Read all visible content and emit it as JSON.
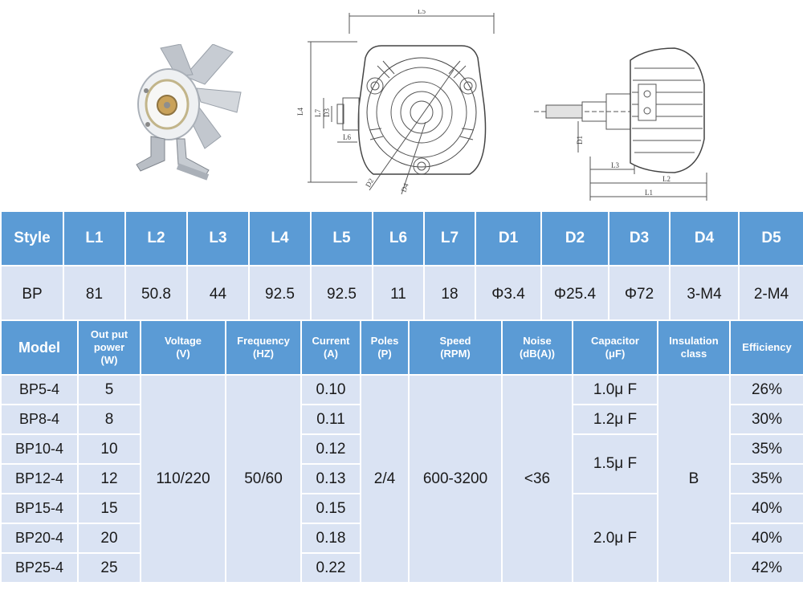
{
  "dimension_table": {
    "headers": [
      "Style",
      "L1",
      "L2",
      "L3",
      "L4",
      "L5",
      "L6",
      "L7",
      "D1",
      "D2",
      "D3",
      "D4",
      "D5"
    ],
    "row": [
      "BP",
      "81",
      "50.8",
      "44",
      "92.5",
      "92.5",
      "11",
      "18",
      "Φ3.4",
      "Φ25.4",
      "Φ72",
      "3-M4",
      "2-M4"
    ]
  },
  "drawing_labels": {
    "front": [
      "L4",
      "L7",
      "D3",
      "L6",
      "L5",
      "D2",
      "D4"
    ],
    "side": [
      "D1",
      "L3",
      "L2",
      "L1"
    ]
  },
  "model_table": {
    "headers": {
      "model": "Model",
      "power": [
        "Out put",
        "power",
        "(W)"
      ],
      "voltage": [
        "Voltage",
        "(V)"
      ],
      "frequency": [
        "Frequency",
        "(HZ)"
      ],
      "current": [
        "Current",
        "(A)"
      ],
      "poles": [
        "Poles",
        "(P)"
      ],
      "speed": [
        "Speed",
        "(RPM)"
      ],
      "noise": [
        "Noise",
        "(dB(A))"
      ],
      "capacitor": [
        "Capacitor",
        "(μF)"
      ],
      "insulation": [
        "Insulation",
        "class"
      ],
      "efficiency": "Efficiency"
    },
    "rows": [
      {
        "model": "BP5-4",
        "power": "5",
        "current": "0.10",
        "efficiency": "26%"
      },
      {
        "model": "BP8-4",
        "power": "8",
        "current": "0.11",
        "efficiency": "30%"
      },
      {
        "model": "BP10-4",
        "power": "10",
        "current": "0.12",
        "efficiency": "35%"
      },
      {
        "model": "BP12-4",
        "power": "12",
        "current": "0.13",
        "efficiency": "35%"
      },
      {
        "model": "BP15-4",
        "power": "15",
        "current": "0.15",
        "efficiency": "40%"
      },
      {
        "model": "BP20-4",
        "power": "20",
        "current": "0.18",
        "efficiency": "40%"
      },
      {
        "model": "BP25-4",
        "power": "25",
        "current": "0.22",
        "efficiency": "42%"
      }
    ],
    "shared": {
      "voltage": "110/220",
      "frequency": "50/60",
      "poles": "2/4",
      "speed": "600-3200",
      "noise": "<36",
      "insulation": "B"
    },
    "capacitors": [
      "1.0μ F",
      "1.2μ F",
      "1.5μ F",
      "2.0μ F"
    ]
  },
  "colors": {
    "header_bg": "#5b9bd5",
    "cell_bg": "#dae3f3"
  }
}
